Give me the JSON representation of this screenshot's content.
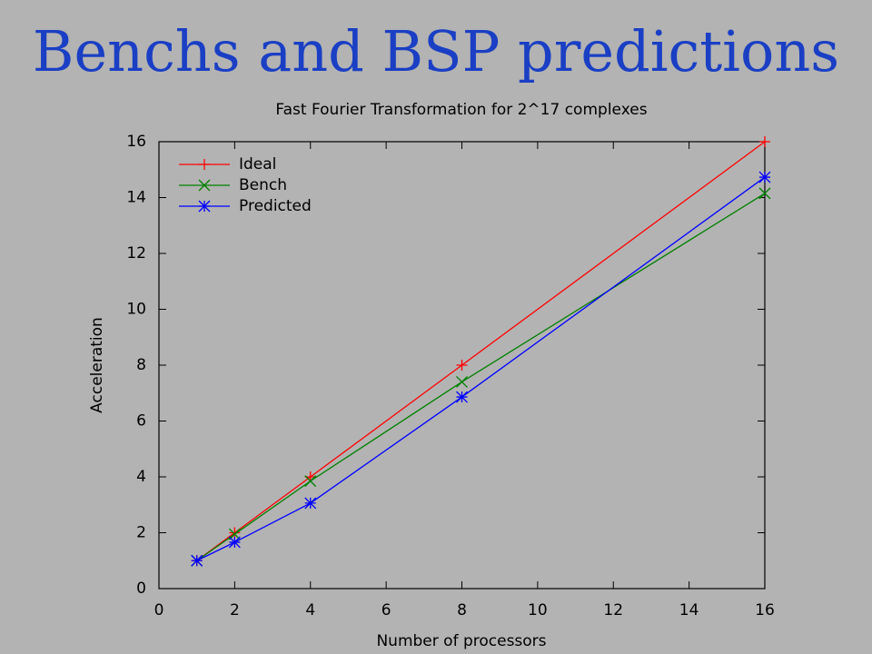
{
  "slide_title": "Benchs and BSP predictions",
  "chart_data": {
    "type": "line",
    "title": "Fast Fourier Transformation for 2^17 complexes",
    "x_label": "Number of processors",
    "y_label": "Acceleration",
    "x": [
      1,
      2,
      4,
      8,
      16
    ],
    "series": [
      {
        "name": "Ideal",
        "color": "#ff0000",
        "marker": "plus",
        "values": [
          1,
          2,
          4,
          8,
          16
        ]
      },
      {
        "name": "Bench",
        "color": "#008000",
        "marker": "cross",
        "values": [
          1,
          1.95,
          3.85,
          7.4,
          14.15
        ]
      },
      {
        "name": "Predicted",
        "color": "#0000ff",
        "marker": "star",
        "values": [
          1,
          1.66,
          3.06,
          6.86,
          14.73
        ]
      }
    ],
    "xlim": [
      0,
      16
    ],
    "ylim": [
      0,
      16
    ],
    "xticks": [
      0,
      2,
      4,
      6,
      8,
      10,
      12,
      14,
      16
    ],
    "yticks": [
      0,
      2,
      4,
      6,
      8,
      10,
      12,
      14,
      16
    ],
    "grid": false,
    "legend": "top-left"
  }
}
